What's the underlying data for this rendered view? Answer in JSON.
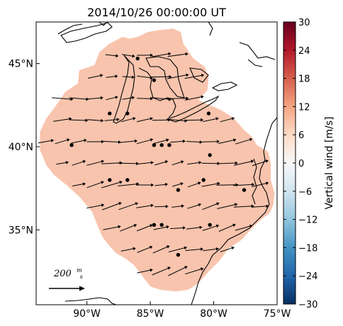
{
  "chart_data": {
    "type": "quiver-map",
    "title": "2014/10/26 00:00:00 UT",
    "xlim": [
      -94,
      -75
    ],
    "ylim": [
      30.5,
      47.5
    ],
    "xticks": [
      {
        "value": -90,
        "label": "90°W"
      },
      {
        "value": -85,
        "label": "85°W"
      },
      {
        "value": -80,
        "label": "80°W"
      },
      {
        "value": -75,
        "label": "75°W"
      }
    ],
    "yticks": [
      {
        "value": 45,
        "label": "45°N"
      },
      {
        "value": 40,
        "label": "40°N"
      },
      {
        "value": 35,
        "label": "35°N"
      }
    ],
    "colorbar": {
      "label": "Vertical wind [m/s]",
      "min": -30,
      "max": 30,
      "ticks": [
        "30",
        "24",
        "18",
        "12",
        "6",
        "0",
        "−6",
        "−12",
        "−18",
        "−24",
        "−30"
      ],
      "tick_values": [
        30,
        24,
        18,
        12,
        6,
        0,
        -6,
        -12,
        -18,
        -24,
        -30
      ],
      "colors": [
        "#053061",
        "#2166ac",
        "#4393c3",
        "#92c5de",
        "#d1e5f0",
        "#f7f7f7",
        "#fddbc7",
        "#f4a582",
        "#d6604d",
        "#b2182b",
        "#67001f"
      ]
    },
    "field_value": 7,
    "field_color": "#f8c4ad",
    "scale_label": "200 m/s",
    "scale_label_main": "200",
    "scale_label_num": "m",
    "scale_label_den": "s",
    "scale_speed": 200,
    "region_polygon": [
      [
        -86.6,
        46.5
      ],
      [
        -86.0,
        46.6
      ],
      [
        -85.2,
        46.9
      ],
      [
        -84.4,
        47.0
      ],
      [
        -83.2,
        47.1
      ],
      [
        -82.6,
        46.9
      ],
      [
        -82.4,
        46.2
      ],
      [
        -81.6,
        45.3
      ],
      [
        -80.7,
        44.8
      ],
      [
        -80.4,
        44.2
      ],
      [
        -80.5,
        43.4
      ],
      [
        -81.2,
        42.8
      ],
      [
        -80.3,
        42.5
      ],
      [
        -79.4,
        42.2
      ],
      [
        -78.4,
        41.7
      ],
      [
        -77.6,
        41.0
      ],
      [
        -77.0,
        40.6
      ],
      [
        -76.6,
        40.1
      ],
      [
        -75.7,
        39.7
      ],
      [
        -75.5,
        39.0
      ],
      [
        -75.5,
        38.0
      ],
      [
        -75.2,
        37.2
      ],
      [
        -75.3,
        36.5
      ],
      [
        -75.6,
        36.0
      ],
      [
        -76.3,
        35.6
      ],
      [
        -77.1,
        35.0
      ],
      [
        -77.8,
        34.4
      ],
      [
        -78.8,
        33.9
      ],
      [
        -79.6,
        33.1
      ],
      [
        -80.4,
        32.5
      ],
      [
        -81.2,
        31.8
      ],
      [
        -82.0,
        31.4
      ],
      [
        -83.0,
        31.3
      ],
      [
        -84.2,
        31.4
      ],
      [
        -85.0,
        31.6
      ],
      [
        -85.7,
        32.3
      ],
      [
        -86.3,
        32.9
      ],
      [
        -87.0,
        33.3
      ],
      [
        -87.7,
        33.6
      ],
      [
        -88.3,
        34.1
      ],
      [
        -88.8,
        34.6
      ],
      [
        -89.6,
        36.1
      ],
      [
        -90.6,
        37.0
      ],
      [
        -91.6,
        37.7
      ],
      [
        -92.6,
        38.3
      ],
      [
        -93.2,
        38.9
      ],
      [
        -93.7,
        39.8
      ],
      [
        -93.7,
        40.9
      ],
      [
        -93.2,
        41.7
      ],
      [
        -92.6,
        42.3
      ],
      [
        -91.7,
        43.3
      ],
      [
        -90.7,
        43.8
      ],
      [
        -90.6,
        44.6
      ],
      [
        -89.4,
        44.9
      ],
      [
        -89.0,
        45.7
      ],
      [
        -88.2,
        46.2
      ],
      [
        -87.2,
        46.6
      ]
    ],
    "stations": [
      [
        -88.2,
        42.0
      ],
      [
        -86.8,
        42.0
      ],
      [
        -80.4,
        42.0
      ],
      [
        -91.2,
        40.1
      ],
      [
        -84.7,
        40.1
      ],
      [
        -84.1,
        40.1
      ],
      [
        -83.5,
        40.1
      ],
      [
        -80.3,
        39.5
      ],
      [
        -88.2,
        38.0
      ],
      [
        -86.8,
        38.0
      ],
      [
        -82.8,
        37.4
      ],
      [
        -80.8,
        38.0
      ],
      [
        -77.6,
        37.4
      ],
      [
        -84.7,
        35.3
      ],
      [
        -84.1,
        35.3
      ],
      [
        -80.3,
        35.3
      ],
      [
        -82.8,
        33.5
      ],
      [
        -86.0,
        45.3
      ],
      [
        -84.7,
        44.0
      ]
    ]
  }
}
